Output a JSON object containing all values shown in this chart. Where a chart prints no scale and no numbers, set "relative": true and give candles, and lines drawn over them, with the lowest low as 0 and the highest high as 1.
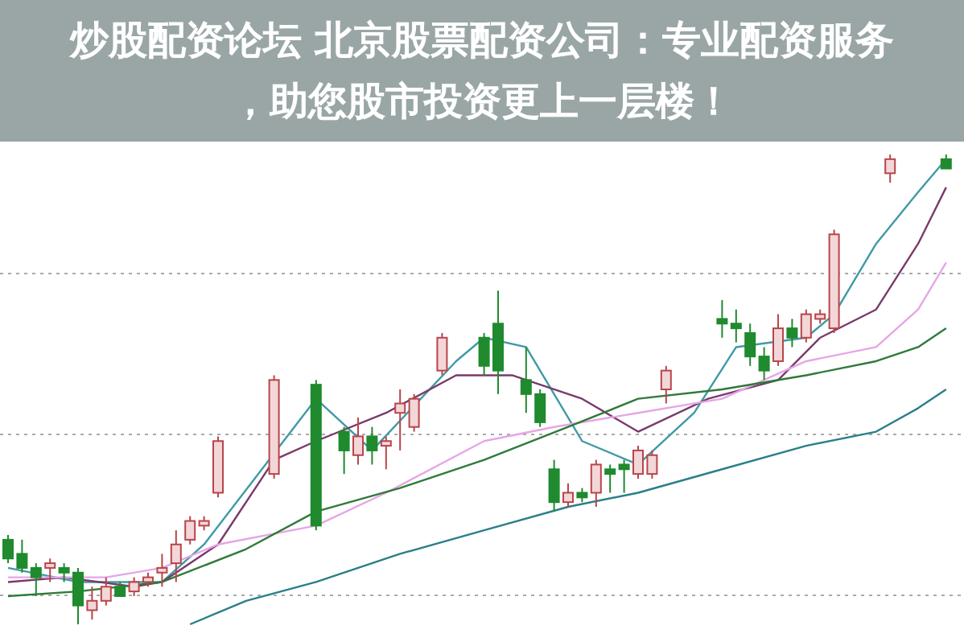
{
  "chart_data": {
    "type": "candlestick",
    "title": "炒股配资论坛 北京股票配资公司：专业配资服务，助您股市投资更上一层楼！",
    "relative": true,
    "grid": "y",
    "categories": [
      null,
      null,
      null,
      null,
      null,
      null,
      null,
      null,
      null,
      null,
      null,
      null,
      null,
      null,
      null,
      null,
      null,
      null,
      null,
      null,
      null,
      null,
      null,
      null,
      null,
      null,
      null,
      null,
      null,
      null,
      null,
      null,
      null,
      null,
      null,
      null,
      null,
      null,
      null,
      null,
      null,
      null,
      null,
      null,
      null,
      null,
      null,
      null,
      null,
      null,
      null,
      null,
      null,
      null,
      null,
      null,
      null,
      null,
      null,
      null,
      null,
      null,
      null,
      null,
      null,
      null,
      null,
      null
    ],
    "ohlc": [
      [
        0.18,
        0.19,
        0.13,
        0.14
      ],
      [
        0.15,
        0.18,
        0.11,
        0.12
      ],
      [
        0.12,
        0.13,
        0.06,
        0.1
      ],
      [
        0.12,
        0.14,
        0.09,
        0.13
      ],
      [
        0.12,
        0.13,
        0.09,
        0.11
      ],
      [
        0.11,
        0.12,
        0,
        0.04
      ],
      [
        0.03,
        0.08,
        0.01,
        0.05
      ],
      [
        0.05,
        0.1,
        0.04,
        0.08
      ],
      [
        0.08,
        0.09,
        0.06,
        0.06
      ],
      [
        0.07,
        0.1,
        0.06,
        0.09
      ],
      [
        0.09,
        0.11,
        0.08,
        0.1
      ],
      [
        0.11,
        0.15,
        0.08,
        0.12
      ],
      [
        0.13,
        0.2,
        0.09,
        0.17
      ],
      [
        0.18,
        0.23,
        0.17,
        0.22
      ],
      [
        0.21,
        0.23,
        0.2,
        0.22
      ],
      [
        0.28,
        0.4,
        0.27,
        0.39
      ],
      null,
      null,
      null,
      [
        0.32,
        0.53,
        0.31,
        0.52
      ],
      null,
      null,
      [
        0.51,
        0.52,
        0.2,
        0.21
      ],
      null,
      [
        0.41,
        0.42,
        0.32,
        0.37
      ],
      [
        0.36,
        0.44,
        0.34,
        0.4
      ],
      [
        0.4,
        0.42,
        0.34,
        0.37
      ],
      [
        0.38,
        0.4,
        0.33,
        0.39
      ],
      [
        0.45,
        0.5,
        0.37,
        0.47
      ],
      [
        0.42,
        0.49,
        0.41,
        0.48
      ],
      null,
      [
        0.54,
        0.62,
        0.53,
        0.61
      ],
      null,
      null,
      [
        0.61,
        0.62,
        0.53,
        0.55
      ],
      [
        0.64,
        0.71,
        0.49,
        0.54
      ],
      null,
      [
        0.52,
        0.59,
        0.45,
        0.49
      ],
      [
        0.49,
        0.5,
        0.42,
        0.43
      ],
      [
        0.33,
        0.35,
        0.24,
        0.26
      ],
      [
        0.26,
        0.3,
        0.25,
        0.28
      ],
      [
        0.28,
        0.29,
        0.26,
        0.27
      ],
      [
        0.28,
        0.35,
        0.25,
        0.34
      ],
      [
        0.33,
        0.34,
        0.28,
        0.32
      ],
      [
        0.34,
        0.35,
        0.28,
        0.33
      ],
      [
        0.32,
        0.38,
        0.31,
        0.37
      ],
      [
        0.32,
        0.37,
        0.31,
        0.36
      ],
      [
        0.5,
        0.55,
        0.47,
        0.54
      ],
      null,
      null,
      null,
      [
        0.65,
        0.69,
        0.61,
        0.64
      ],
      [
        0.64,
        0.67,
        0.6,
        0.63
      ],
      [
        0.62,
        0.64,
        0.55,
        0.57
      ],
      [
        0.57,
        0.59,
        0.52,
        0.54
      ],
      [
        0.56,
        0.66,
        0.55,
        0.63
      ],
      [
        0.63,
        0.65,
        0.59,
        0.61
      ],
      [
        0.61,
        0.67,
        0.6,
        0.66
      ],
      [
        0.65,
        0.67,
        0.64,
        0.66
      ],
      [
        0.63,
        0.84,
        0.62,
        0.83
      ],
      null,
      null,
      null,
      [
        0.96,
        1,
        0.94,
        0.99
      ],
      null,
      null,
      null,
      [
        0.99,
        1,
        0.97,
        0.97
      ]
    ],
    "series": [
      {
        "type": "line",
        "color": "#3f9aa6",
        "values": [
          0.12,
          null,
          null,
          null,
          null,
          0.09,
          null,
          null,
          null,
          null,
          null,
          0.09,
          null,
          null,
          0.17,
          null,
          null,
          null,
          null,
          null,
          null,
          null,
          0.48,
          null,
          null,
          null,
          0.37,
          null,
          null,
          null,
          null,
          null,
          0.56,
          null,
          0.61,
          null,
          null,
          0.59,
          null,
          null,
          null,
          0.39,
          null,
          null,
          null,
          0.34,
          null,
          null,
          null,
          0.45,
          null,
          null,
          0.59,
          null,
          null,
          null,
          null,
          0.61,
          null,
          0.66,
          null,
          null,
          0.81,
          null,
          null,
          0.92,
          null,
          0.99
        ]
      },
      {
        "type": "line",
        "color": "#7a3a6a",
        "values": [
          0.09,
          null,
          null,
          null,
          0.1,
          null,
          null,
          null,
          null,
          0.08,
          null,
          0.09,
          null,
          null,
          null,
          0.17,
          null,
          null,
          null,
          0.35,
          null,
          null,
          0.39,
          null,
          null,
          null,
          null,
          0.45,
          null,
          null,
          null,
          null,
          0.53,
          null,
          null,
          null,
          0.53,
          null,
          null,
          null,
          null,
          0.48,
          null,
          null,
          null,
          0.41,
          null,
          null,
          null,
          null,
          0.48,
          null,
          null,
          null,
          null,
          0.52,
          null,
          null,
          0.61,
          null,
          null,
          null,
          0.67,
          null,
          null,
          0.81,
          null,
          0.93
        ]
      },
      {
        "type": "line",
        "color": "#e6a6e6",
        "values": [
          0.1,
          null,
          null,
          null,
          null,
          null,
          null,
          0.1,
          null,
          null,
          null,
          0.12,
          null,
          null,
          null,
          0.17,
          null,
          null,
          null,
          null,
          null,
          null,
          0.21,
          null,
          null,
          null,
          null,
          0.28,
          null,
          null,
          null,
          null,
          null,
          null,
          0.39,
          null,
          null,
          null,
          null,
          0.42,
          null,
          null,
          null,
          null,
          null,
          0.45,
          null,
          null,
          null,
          null,
          null,
          0.48,
          null,
          null,
          null,
          null,
          null,
          0.56,
          null,
          null,
          null,
          null,
          0.59,
          null,
          null,
          0.67,
          null,
          0.77
        ]
      },
      {
        "type": "line",
        "color": "#2f7a3a",
        "values": [
          0.06,
          null,
          null,
          null,
          null,
          0.07,
          null,
          null,
          null,
          null,
          null,
          0.09,
          null,
          null,
          null,
          null,
          null,
          0.16,
          null,
          null,
          null,
          null,
          0.24,
          null,
          null,
          null,
          null,
          null,
          0.29,
          null,
          null,
          null,
          null,
          null,
          0.35,
          null,
          null,
          null,
          null,
          null,
          0.42,
          null,
          null,
          null,
          null,
          0.48,
          null,
          null,
          null,
          null,
          null,
          0.5,
          null,
          null,
          null,
          null,
          null,
          0.53,
          null,
          null,
          null,
          null,
          0.56,
          null,
          null,
          0.59,
          null,
          0.63
        ]
      },
      {
        "type": "line",
        "color": "#2a7f8a",
        "values": [
          null,
          null,
          null,
          null,
          null,
          null,
          null,
          null,
          null,
          null,
          null,
          null,
          null,
          0,
          null,
          null,
          null,
          0.05,
          null,
          null,
          null,
          null,
          0.09,
          null,
          null,
          null,
          null,
          null,
          0.15,
          null,
          null,
          null,
          null,
          null,
          0.2,
          null,
          null,
          null,
          null,
          null,
          0.25,
          null,
          null,
          null,
          null,
          0.28,
          null,
          null,
          null,
          null,
          null,
          0.33,
          null,
          null,
          null,
          null,
          null,
          0.38,
          null,
          null,
          null,
          null,
          0.41,
          null,
          null,
          0.46,
          null,
          0.5
        ]
      }
    ]
  }
}
